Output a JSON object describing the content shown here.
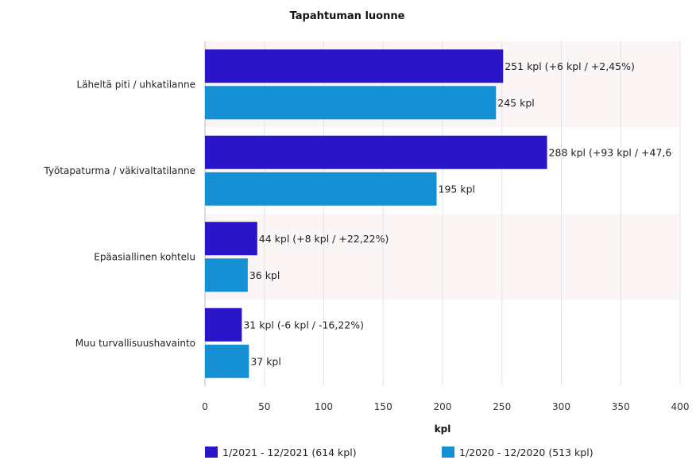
{
  "chart_data": {
    "type": "bar",
    "orientation": "horizontal",
    "title": "Tapahtuman luonne",
    "xlabel": "kpl",
    "ylabel": "",
    "xlim": [
      0,
      400
    ],
    "ticks": [
      "0",
      "50",
      "100",
      "150",
      "200",
      "250",
      "300",
      "350",
      "400"
    ],
    "grid": true,
    "legend_position": "bottom",
    "categories": [
      "Läheltä piti / uhkatilanne",
      "Työtapaturma / väkivaltatilanne",
      "Epäasiallinen kohtelu",
      "Muu turvallisuushavainto"
    ],
    "series": [
      {
        "name": "1/2021 - 12/2021 (614 kpl)",
        "color": "#2a16c8",
        "values": [
          251,
          288,
          44,
          31
        ],
        "labels": [
          "251 kpl (+6 kpl / +2,45%)",
          "288 kpl (+93 kpl / +47,6",
          "44 kpl (+8 kpl / +22,22%)",
          "31 kpl (-6 kpl / -16,22%)"
        ]
      },
      {
        "name": "1/2020 - 12/2020 (513 kpl)",
        "color": "#1590d4",
        "values": [
          245,
          195,
          36,
          37
        ],
        "labels": [
          "245 kpl",
          "195 kpl",
          "36 kpl",
          "37 kpl"
        ]
      }
    ]
  }
}
